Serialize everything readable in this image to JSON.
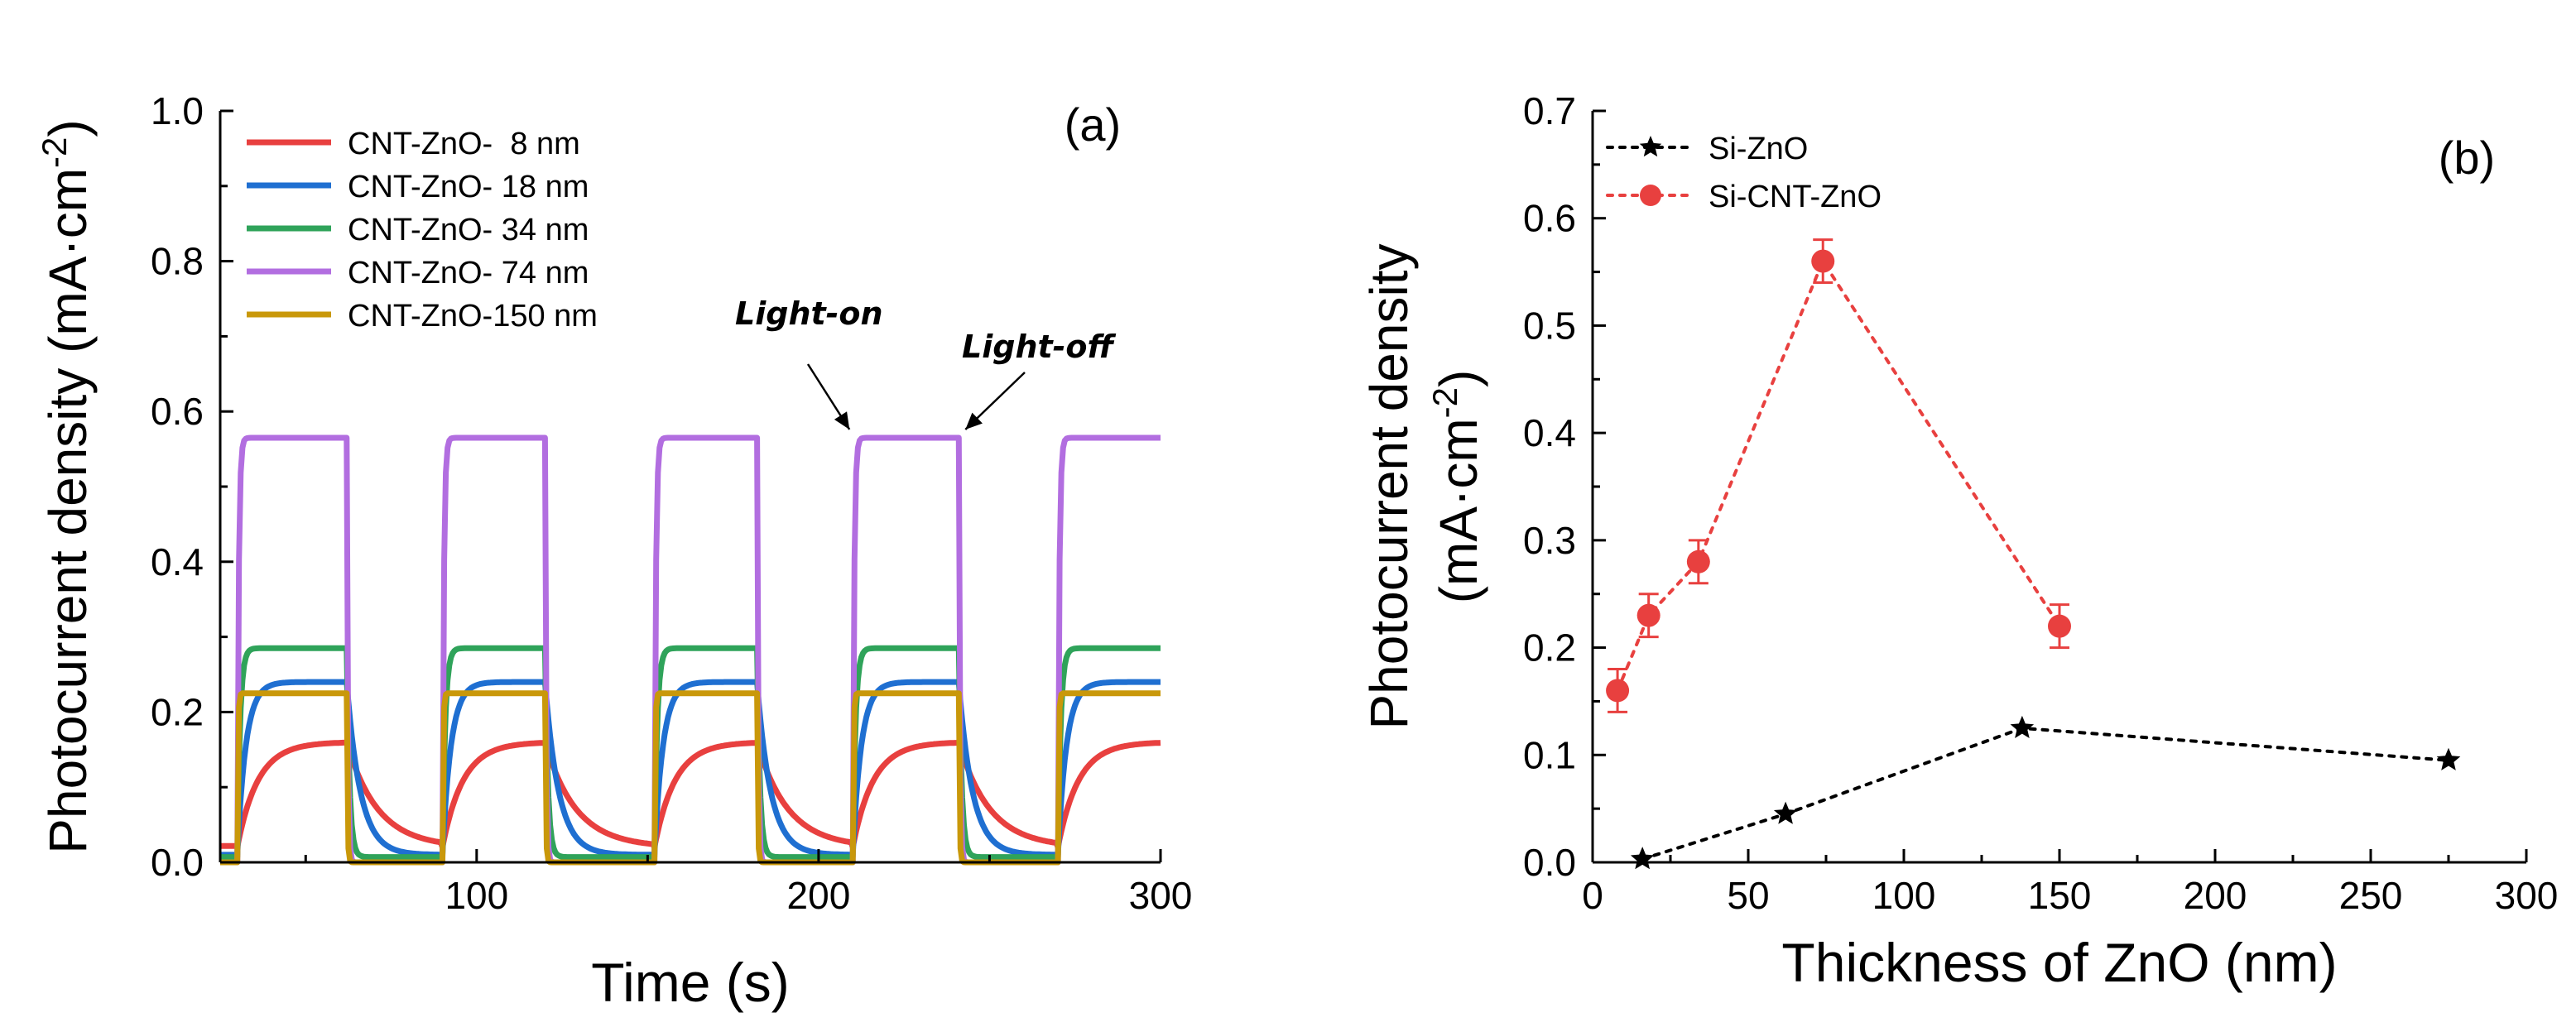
{
  "chart_data": [
    {
      "type": "line",
      "panel_label": "(a)",
      "xlabel": "Time (s)",
      "ylabel": "Photocurrent density (mA·cm",
      "ylabel_sup": "-2",
      "ylabel_close": ")",
      "xlim": [
        25,
        300
      ],
      "ylim": [
        0,
        1.0
      ],
      "x_ticks": [
        100,
        200,
        300
      ],
      "y_ticks": [
        "0.0",
        "0.2",
        "0.4",
        "0.6",
        "0.8",
        "1.0"
      ],
      "light_on_times": [
        30,
        90,
        152,
        210,
        270
      ],
      "light_off_times": [
        62,
        120,
        182,
        241
      ],
      "series": [
        {
          "name": "CNT-ZnO-  8 nm",
          "color": "#e8403f",
          "plateau": 0.16,
          "dark": 0.02,
          "tau_on": 6,
          "tau_off": 9
        },
        {
          "name": "CNT-ZnO- 18 nm",
          "color": "#1f6fd1",
          "plateau": 0.24,
          "dark": 0.01,
          "tau_on": 2.5,
          "tau_off": 4
        },
        {
          "name": "CNT-ZnO- 34 nm",
          "color": "#2fa35a",
          "plateau": 0.285,
          "dark": 0.007,
          "tau_on": 0.8,
          "tau_off": 0.8
        },
        {
          "name": "CNT-ZnO- 74 nm",
          "color": "#b26ee0",
          "plateau": 0.565,
          "dark": 0.0,
          "tau_on": 0.4,
          "tau_off": 0.3
        },
        {
          "name": "CNT-ZnO-150 nm",
          "color": "#c9980a",
          "plateau": 0.225,
          "dark": 0.0,
          "tau_on": 0.2,
          "tau_off": 0.2
        }
      ],
      "annotations": [
        {
          "text": "Light-on",
          "points_to_time": 210,
          "points_to_value": 0.565
        },
        {
          "text": "Light-off",
          "points_to_time": 241,
          "points_to_value": 0.565
        }
      ]
    },
    {
      "type": "scatter",
      "panel_label": "(b)",
      "xlabel": "Thickness of ZnO (nm)",
      "ylabel_line1": "Photocurrent density",
      "ylabel_line2": "(mA·cm",
      "ylabel_sup": "-2",
      "ylabel_close": ")",
      "xlim": [
        0,
        300
      ],
      "ylim": [
        0,
        0.7
      ],
      "x_ticks": [
        0,
        50,
        100,
        150,
        200,
        250,
        300
      ],
      "y_ticks": [
        "0.0",
        "0.1",
        "0.2",
        "0.3",
        "0.4",
        "0.5",
        "0.6",
        "0.7"
      ],
      "series": [
        {
          "name": "Si-ZnO",
          "color": "#000000",
          "marker": "star",
          "x": [
            16,
            62,
            138,
            275
          ],
          "y": [
            0.003,
            0.045,
            0.125,
            0.095
          ]
        },
        {
          "name": "Si-CNT-ZnO",
          "color": "#e8403f",
          "marker": "circle",
          "x": [
            8,
            18,
            34,
            74,
            150
          ],
          "y": [
            0.16,
            0.23,
            0.28,
            0.56,
            0.22
          ],
          "err": [
            0.02,
            0.02,
            0.02,
            0.02,
            0.02
          ]
        }
      ]
    }
  ]
}
